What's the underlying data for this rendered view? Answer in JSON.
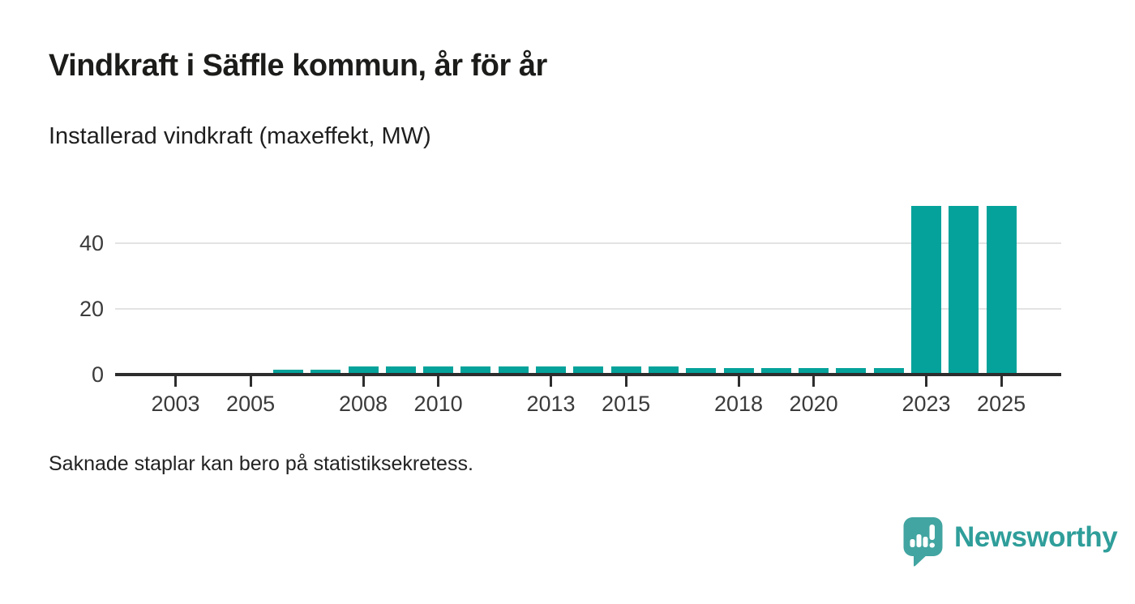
{
  "header": {
    "title": "Vindkraft i Säffle kommun, år för år",
    "subtitle": "Installerad vindkraft (maxeffekt, MW)"
  },
  "footer": {
    "note": "Saknade staplar kan bero på statistiksekretess."
  },
  "branding": {
    "name": "Newsworthy",
    "icon": "bar-chart-speech-bubble-icon",
    "wordmark_color": "#2f9e9a",
    "icon_color": "#42a5a1"
  },
  "chart_data": {
    "type": "bar",
    "title": "Vindkraft i Säffle kommun, år för år",
    "subtitle": "Installerad vindkraft (maxeffekt, MW)",
    "unit": "MW",
    "bar_color": "#04a29a",
    "grid": "horizontal",
    "legend": "none",
    "x_range_years": [
      2002,
      2026
    ],
    "categories": [
      2002,
      2003,
      2004,
      2005,
      2006,
      2007,
      2008,
      2009,
      2010,
      2011,
      2012,
      2013,
      2014,
      2015,
      2016,
      2017,
      2018,
      2019,
      2020,
      2021,
      2022,
      2023,
      2024,
      2025
    ],
    "values": [
      null,
      null,
      null,
      null,
      1.4,
      1.4,
      2.4,
      2.4,
      2.4,
      2.4,
      2.4,
      2.4,
      2.4,
      2.4,
      2.4,
      2.0,
      2.0,
      2.0,
      2.0,
      2.0,
      2.0,
      51.5,
      51.5,
      51.5
    ],
    "missing_years": [
      2002,
      2003,
      2004,
      2005
    ],
    "x_tick_labels": [
      "2003",
      "2005",
      "2008",
      "2010",
      "2013",
      "2015",
      "2018",
      "2020",
      "2023",
      "2025"
    ],
    "y_ticks": [
      0,
      20,
      40
    ],
    "ylim": [
      0,
      55
    ],
    "missing_note": "Saknade staplar kan bero på statistiksekretess."
  }
}
